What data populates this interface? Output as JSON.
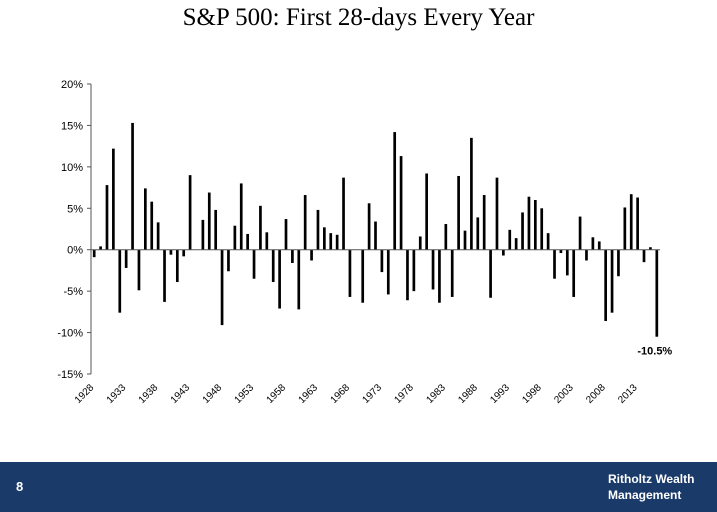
{
  "slide": {
    "title": "S&P 500: First 28-days Every Year",
    "page_number": "8",
    "brand_line1": "Ritholtz Wealth",
    "brand_line2": "Management"
  },
  "colors": {
    "bars": "#000000",
    "footer": "#1a3a6a",
    "text": "#000000"
  },
  "chart_data": {
    "type": "bar",
    "title": "S&P 500: First 28-days Every Year",
    "xlabel": "",
    "ylabel": "",
    "ylim": [
      -15,
      20
    ],
    "yticks": [
      20,
      15,
      10,
      5,
      0,
      -5,
      -10,
      -15
    ],
    "ytick_labels": [
      "20%",
      "15%",
      "10%",
      "5%",
      "0%",
      "-5%",
      "-10%",
      "-15%"
    ],
    "xtick_labels": [
      "1928",
      "1933",
      "1938",
      "1943",
      "1948",
      "1953",
      "1958",
      "1963",
      "1968",
      "1973",
      "1978",
      "1983",
      "1988",
      "1993",
      "1998",
      "2003",
      "2008",
      "2013"
    ],
    "grid": false,
    "categories": [
      1928,
      1929,
      1930,
      1931,
      1932,
      1933,
      1934,
      1935,
      1936,
      1937,
      1938,
      1939,
      1940,
      1941,
      1942,
      1943,
      1944,
      1945,
      1946,
      1947,
      1948,
      1949,
      1950,
      1951,
      1952,
      1953,
      1954,
      1955,
      1956,
      1957,
      1958,
      1959,
      1960,
      1961,
      1962,
      1963,
      1964,
      1965,
      1966,
      1967,
      1968,
      1969,
      1970,
      1971,
      1972,
      1973,
      1974,
      1975,
      1976,
      1977,
      1978,
      1979,
      1980,
      1981,
      1982,
      1983,
      1984,
      1985,
      1986,
      1987,
      1988,
      1989,
      1990,
      1991,
      1992,
      1993,
      1994,
      1995,
      1996,
      1997,
      1998,
      1999,
      2000,
      2001,
      2002,
      2003,
      2004,
      2005,
      2006,
      2007,
      2008,
      2009,
      2010,
      2011,
      2012,
      2013,
      2014,
      2015,
      2016
    ],
    "values": [
      -0.9,
      0.4,
      7.8,
      12.2,
      -7.6,
      -2.2,
      15.3,
      -4.9,
      7.4,
      5.8,
      3.3,
      -6.3,
      -0.6,
      -3.9,
      -0.8,
      9.0,
      0,
      3.6,
      6.9,
      4.8,
      -9.1,
      -2.6,
      2.9,
      8.0,
      1.9,
      -3.5,
      5.3,
      2.1,
      -3.9,
      -7.1,
      3.7,
      -1.6,
      -7.2,
      6.6,
      -1.3,
      4.8,
      2.7,
      2.0,
      1.8,
      8.7,
      -5.7,
      0,
      -6.4,
      5.6,
      3.4,
      -2.7,
      -5.4,
      14.2,
      11.3,
      -6.1,
      -5.0,
      1.6,
      9.2,
      -4.8,
      -6.4,
      3.1,
      -5.7,
      8.9,
      2.3,
      13.5,
      3.9,
      6.6,
      -5.8,
      8.7,
      -0.7,
      2.4,
      1.4,
      4.5,
      6.4,
      6.0,
      5.0,
      2.0,
      -3.5,
      -0.4,
      -3.1,
      -5.7,
      4.0,
      -1.3,
      1.5,
      1.0,
      -8.6,
      -7.6,
      -3.2,
      5.1,
      6.7,
      6.3,
      -1.5,
      0.3,
      -10.5
    ],
    "annotations": [
      {
        "text": "-10.5%",
        "x": 2016,
        "y": -10.5
      }
    ]
  }
}
